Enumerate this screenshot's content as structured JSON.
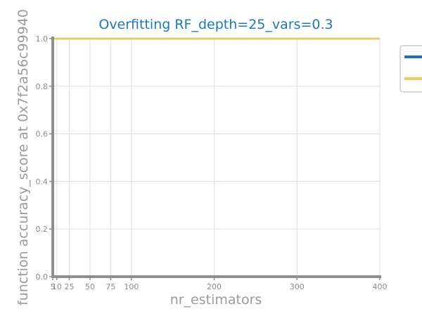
{
  "chart_data": {
    "type": "line",
    "title": "Overfitting RF_depth=25_vars=0.3",
    "xlabel": "nr_estimators",
    "ylabel": "function accuracy_score at 0x7f2a56c99940",
    "xlim": [
      5,
      400
    ],
    "ylim": [
      0,
      1
    ],
    "x": [
      5,
      10,
      25,
      50,
      75,
      100,
      200,
      300,
      400
    ],
    "xticks": [
      5,
      10,
      25,
      50,
      75,
      100,
      200,
      300,
      400
    ],
    "yticks": [
      0.0,
      0.2,
      0.4,
      0.6,
      0.8,
      1.0
    ],
    "grid": true,
    "legend_position": "top-right",
    "series": [
      {
        "color": "#1f6fb2",
        "values": [
          1.0,
          1.0,
          1.0,
          1.0,
          1.0,
          1.0,
          1.0,
          1.0,
          1.0
        ]
      },
      {
        "color": "#e8cd6f",
        "values": [
          1.0,
          1.0,
          1.0,
          1.0,
          1.0,
          1.0,
          1.0,
          1.0,
          1.0
        ]
      }
    ]
  }
}
